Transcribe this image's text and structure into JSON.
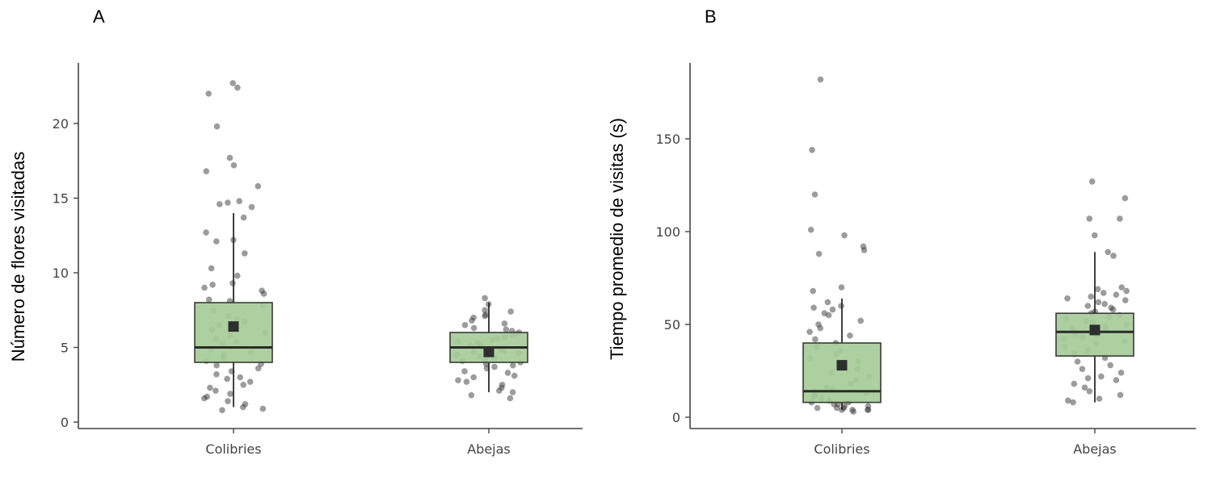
{
  "colors": {
    "box_fill": "#a6cc98",
    "points": "#3a3a3a",
    "mean_marker": "#2e2e2e"
  },
  "chart_data": [
    {
      "panel": "A",
      "type": "boxplot",
      "ylabel": "Número de flores visitadas",
      "xlabel": "",
      "ylim": [
        0,
        24
      ],
      "yticks": [
        0,
        5,
        10,
        15,
        20
      ],
      "categories": [
        "Colibries",
        "Abejas"
      ],
      "boxes": [
        {
          "q1": 4,
          "median": 5,
          "q3": 8,
          "whisker_low": 1,
          "whisker_high": 14,
          "mean": 6.4
        },
        {
          "q1": 4,
          "median": 5,
          "q3": 6,
          "whisker_low": 2,
          "whisker_high": 8,
          "mean": 4.7
        }
      ],
      "points": [
        [
          22.7,
          22.4,
          22.0,
          19.8,
          17.7,
          17.2,
          16.8,
          15.8,
          14.8,
          14.7,
          14.6,
          14.4,
          13.7,
          12.7,
          12.2,
          12.1,
          11.3,
          10.3,
          9.8,
          9.3,
          9.2,
          9.0,
          8.8,
          8.6,
          8.2,
          8.1,
          7.8,
          7.5,
          7.1,
          6.9,
          6.7,
          6.5,
          6.2,
          6.0,
          5.8,
          5.6,
          5.4,
          5.2,
          4.9,
          4.7,
          4.5,
          4.3,
          4.1,
          3.9,
          3.8,
          3.6,
          3.4,
          3.2,
          3.0,
          2.9,
          2.7,
          2.5,
          2.3,
          2.1,
          1.9,
          1.7,
          1.6,
          1.4,
          1.2,
          1.0,
          0.9,
          0.8
        ],
        [
          8.3,
          7.9,
          7.5,
          7.4,
          7.2,
          7.1,
          7.0,
          6.8,
          6.6,
          6.5,
          6.3,
          6.2,
          6.1,
          6.0,
          5.9,
          5.8,
          5.7,
          5.6,
          5.5,
          5.4,
          5.3,
          5.2,
          5.1,
          5.0,
          4.9,
          4.8,
          4.7,
          4.6,
          4.5,
          4.4,
          4.3,
          4.2,
          4.1,
          4.0,
          3.9,
          3.8,
          3.7,
          3.6,
          3.4,
          3.3,
          3.1,
          3.0,
          2.8,
          2.7,
          2.5,
          2.3,
          2.1,
          2.0,
          1.8,
          1.6
        ]
      ]
    },
    {
      "panel": "B",
      "type": "boxplot",
      "ylabel": "Tiempo promedio de visitas (s)",
      "xlabel": "",
      "ylim": [
        0,
        190
      ],
      "yticks": [
        0,
        50,
        100,
        150
      ],
      "categories": [
        "Colibries",
        "Abejas"
      ],
      "boxes": [
        {
          "q1": 8,
          "median": 14,
          "q3": 40,
          "whisker_low": 4,
          "whisker_high": 64,
          "mean": 28
        },
        {
          "q1": 33,
          "median": 46,
          "q3": 56,
          "whisker_low": 8,
          "whisker_high": 89,
          "mean": 47
        }
      ],
      "points": [
        [
          182,
          144,
          120,
          101,
          98,
          92,
          90,
          88,
          70,
          68,
          62,
          60,
          59,
          58,
          56,
          55,
          52,
          50,
          48,
          46,
          44,
          42,
          40,
          38,
          36,
          34,
          32,
          30,
          28,
          26,
          24,
          22,
          20,
          18,
          16,
          15,
          14,
          13,
          12,
          11,
          10,
          9,
          8,
          8,
          7,
          7,
          6,
          6,
          5,
          5,
          5,
          4,
          4,
          4,
          4,
          3
        ],
        [
          127,
          118,
          107,
          107,
          98,
          89,
          87,
          70,
          69,
          68,
          67,
          66,
          65,
          64,
          63,
          62,
          61,
          60,
          59,
          58,
          57,
          56,
          55,
          54,
          53,
          52,
          51,
          50,
          49,
          48,
          47,
          46,
          45,
          44,
          43,
          42,
          41,
          40,
          38,
          36,
          34,
          32,
          30,
          28,
          26,
          24,
          22,
          21,
          20,
          18,
          16,
          14,
          12,
          10,
          9,
          8
        ]
      ]
    }
  ]
}
